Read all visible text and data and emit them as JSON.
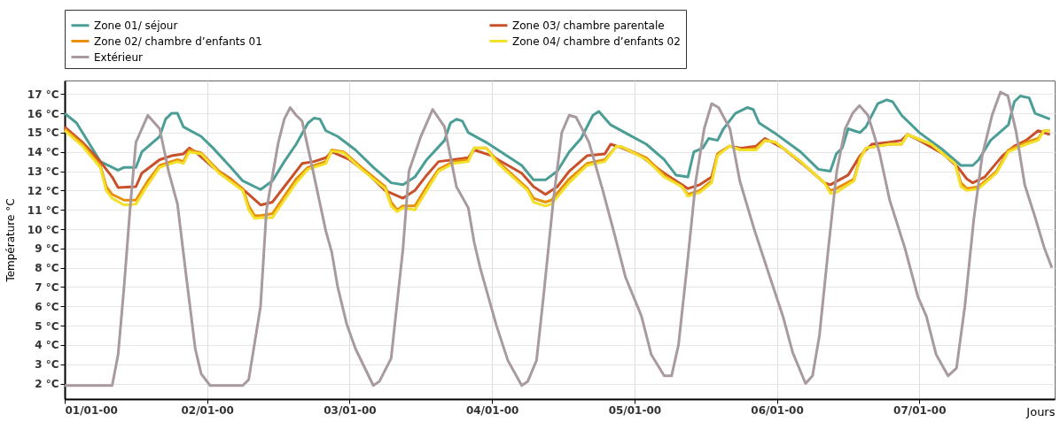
{
  "chart_data": {
    "type": "line",
    "ylabel": "Température °C",
    "xlabel": "Jours",
    "legend": "top",
    "grid": true,
    "line_style": "solid",
    "marker": "none",
    "xlim": [
      "2000-01-01T00:00",
      "2000-01-07T22:48"
    ],
    "ylim": [
      1.2,
      17.7
    ],
    "xticks": [
      {
        "value": "2000-01-01",
        "label": "01/01-00"
      },
      {
        "value": "2000-01-02",
        "label": "02/01-00"
      },
      {
        "value": "2000-01-03",
        "label": "03/01-00"
      },
      {
        "value": "2000-01-04",
        "label": "04/01-00"
      },
      {
        "value": "2000-01-05",
        "label": "05/01-00"
      },
      {
        "value": "2000-01-06",
        "label": "06/01-00"
      },
      {
        "value": "2000-01-07",
        "label": "07/01-00"
      }
    ],
    "yticks": [
      {
        "value": 2,
        "label": "2 °C"
      },
      {
        "value": 3,
        "label": "3 °C"
      },
      {
        "value": 4,
        "label": "4 °C"
      },
      {
        "value": 5,
        "label": "5 °C"
      },
      {
        "value": 6,
        "label": "6 °C"
      },
      {
        "value": 7,
        "label": "7 °C"
      },
      {
        "value": 8,
        "label": "8 °C"
      },
      {
        "value": 9,
        "label": "9 °C"
      },
      {
        "value": 10,
        "label": "10 °C"
      },
      {
        "value": 11,
        "label": "11 °C"
      },
      {
        "value": 12,
        "label": "12 °C"
      },
      {
        "value": 13,
        "label": "13 °C"
      },
      {
        "value": 14,
        "label": "14 °C"
      },
      {
        "value": 15,
        "label": "15 °C"
      },
      {
        "value": 16,
        "label": "16 °C"
      },
      {
        "value": 17,
        "label": "17 °C"
      }
    ],
    "series": [
      {
        "name": "Zone 01/ séjour",
        "color": "#4a9e96",
        "x": [
          "2000-01-01T00:00",
          "2000-01-01T02:00",
          "2000-01-01T04:00",
          "2000-01-01T06:00",
          "2000-01-01T09:00",
          "2000-01-01T10:00",
          "2000-01-01T12:00",
          "2000-01-01T13:00",
          "2000-01-01T16:00",
          "2000-01-01T17:00",
          "2000-01-01T18:00",
          "2000-01-01T19:00",
          "2000-01-01T20:00",
          "2000-01-01T23:00",
          "2000-01-02T01:00",
          "2000-01-02T04:00",
          "2000-01-02T06:00",
          "2000-01-02T09:00",
          "2000-01-02T11:00",
          "2000-01-02T13:00",
          "2000-01-02T15:00",
          "2000-01-02T17:00",
          "2000-01-02T18:00",
          "2000-01-02T19:00",
          "2000-01-02T20:00",
          "2000-01-02T22:00",
          "2000-01-03T01:00",
          "2000-01-03T04:00",
          "2000-01-03T07:00",
          "2000-01-03T09:00",
          "2000-01-03T11:00",
          "2000-01-03T13:00",
          "2000-01-03T16:00",
          "2000-01-03T17:00",
          "2000-01-03T18:00",
          "2000-01-03T19:00",
          "2000-01-03T20:00",
          "2000-01-03T23:00",
          "2000-01-04T01:00",
          "2000-01-04T05:00",
          "2000-01-04T07:00",
          "2000-01-04T09:00",
          "2000-01-04T11:00",
          "2000-01-04T13:00",
          "2000-01-04T15:00",
          "2000-01-04T17:00",
          "2000-01-04T18:00",
          "2000-01-04T20:00",
          "2000-01-04T23:00",
          "2000-01-05T02:00",
          "2000-01-05T05:00",
          "2000-01-05T07:00",
          "2000-01-05T09:00",
          "2000-01-05T10:00",
          "2000-01-05T11:30",
          "2000-01-05T12:30",
          "2000-01-05T14:00",
          "2000-01-05T15:00",
          "2000-01-05T17:00",
          "2000-01-05T19:00",
          "2000-01-05T20:00",
          "2000-01-05T21:00",
          "2000-01-06T00:00",
          "2000-01-06T04:00",
          "2000-01-06T07:00",
          "2000-01-06T09:00",
          "2000-01-06T10:00",
          "2000-01-06T11:00",
          "2000-01-06T12:00",
          "2000-01-06T13:00",
          "2000-01-06T14:00",
          "2000-01-06T15:00",
          "2000-01-06T17:00",
          "2000-01-06T18:30",
          "2000-01-06T19:30",
          "2000-01-06T21:00",
          "2000-01-07T00:00",
          "2000-01-07T04:00",
          "2000-01-07T07:00",
          "2000-01-07T09:00",
          "2000-01-07T10:00",
          "2000-01-07T12:00",
          "2000-01-07T15:00",
          "2000-01-07T16:00",
          "2000-01-07T17:00",
          "2000-01-07T18:30",
          "2000-01-07T19:30",
          "2000-01-07T22:00"
        ],
        "values": [
          16.0,
          15.5,
          14.5,
          13.5,
          13.05,
          13.2,
          13.2,
          14.0,
          14.8,
          15.7,
          16.0,
          16.0,
          15.3,
          14.8,
          14.2,
          13.2,
          12.5,
          12.05,
          12.5,
          13.5,
          14.4,
          15.5,
          15.75,
          15.7,
          15.1,
          14.8,
          14.1,
          13.2,
          12.4,
          12.3,
          12.7,
          13.6,
          14.6,
          15.5,
          15.7,
          15.6,
          15.0,
          14.5,
          14.1,
          13.3,
          12.55,
          12.55,
          13.0,
          14.0,
          14.7,
          15.9,
          16.1,
          15.4,
          14.9,
          14.4,
          13.6,
          12.8,
          12.7,
          14.0,
          14.2,
          14.7,
          14.6,
          15.2,
          16.0,
          16.3,
          16.2,
          15.5,
          14.9,
          14.0,
          13.1,
          13.0,
          13.9,
          14.2,
          15.2,
          15.1,
          15.0,
          15.3,
          16.5,
          16.7,
          16.6,
          15.9,
          15.0,
          14.1,
          13.3,
          13.3,
          13.6,
          14.6,
          15.4,
          16.6,
          16.9,
          16.8,
          16.0,
          15.7
        ]
      },
      {
        "name": "Zone 03/ chambre parentale",
        "color": "#c8502a",
        "x": [
          "2000-01-01T00:00",
          "2000-01-01T03:00",
          "2000-01-01T06:00",
          "2000-01-01T08:00",
          "2000-01-01T09:00",
          "2000-01-01T12:00",
          "2000-01-01T13:00",
          "2000-01-01T16:00",
          "2000-01-01T18:00",
          "2000-01-01T20:00",
          "2000-01-01T21:00",
          "2000-01-01T22:00",
          "2000-01-02T01:00",
          "2000-01-02T04:00",
          "2000-01-02T07:00",
          "2000-01-02T09:00",
          "2000-01-02T11:00",
          "2000-01-02T13:00",
          "2000-01-02T15:00",
          "2000-01-02T16:00",
          "2000-01-02T18:00",
          "2000-01-02T20:00",
          "2000-01-02T21:00",
          "2000-01-03T00:00",
          "2000-01-03T03:00",
          "2000-01-03T06:00",
          "2000-01-03T09:00",
          "2000-01-03T11:00",
          "2000-01-03T13:00",
          "2000-01-03T15:00",
          "2000-01-03T17:30",
          "2000-01-03T20:00",
          "2000-01-03T21:00",
          "2000-01-04T00:00",
          "2000-01-04T01:00",
          "2000-01-04T05:00",
          "2000-01-04T07:00",
          "2000-01-04T09:00",
          "2000-01-04T11:00",
          "2000-01-04T13:00",
          "2000-01-04T16:00",
          "2000-01-04T19:00",
          "2000-01-04T20:00",
          "2000-01-04T22:00",
          "2000-01-05T01:00",
          "2000-01-05T05:00",
          "2000-01-05T08:00",
          "2000-01-05T09:00",
          "2000-01-05T11:00",
          "2000-01-05T13:00",
          "2000-01-05T14:00",
          "2000-01-05T16:00",
          "2000-01-05T18:00",
          "2000-01-05T20:30",
          "2000-01-05T22:00",
          "2000-01-06T01:00",
          "2000-01-06T05:00",
          "2000-01-06T08:00",
          "2000-01-06T09:00",
          "2000-01-06T12:00",
          "2000-01-06T14:00",
          "2000-01-06T16:00",
          "2000-01-06T19:00",
          "2000-01-06T21:00",
          "2000-01-06T22:00",
          "2000-01-07T00:00",
          "2000-01-07T04:00",
          "2000-01-07T06:30",
          "2000-01-07T08:00",
          "2000-01-07T09:00",
          "2000-01-07T11:00",
          "2000-01-07T14:00",
          "2000-01-07T16:00",
          "2000-01-07T18:00",
          "2000-01-07T20:00",
          "2000-01-07T22:00"
        ],
        "values": [
          15.3,
          14.5,
          13.5,
          12.7,
          12.15,
          12.2,
          12.9,
          13.6,
          13.8,
          13.9,
          14.2,
          14.0,
          13.2,
          12.6,
          11.8,
          11.25,
          11.4,
          12.2,
          13.0,
          13.4,
          13.5,
          13.7,
          14.0,
          13.6,
          12.9,
          12.0,
          11.6,
          12.0,
          12.8,
          13.5,
          13.6,
          13.7,
          14.1,
          13.8,
          13.6,
          12.9,
          12.2,
          11.8,
          12.2,
          13.0,
          13.8,
          13.9,
          14.4,
          14.2,
          13.8,
          12.9,
          12.3,
          12.1,
          12.3,
          12.7,
          13.9,
          14.3,
          14.2,
          14.3,
          14.7,
          14.2,
          13.2,
          12.4,
          12.3,
          12.8,
          13.8,
          14.4,
          14.5,
          14.6,
          14.9,
          14.6,
          13.9,
          13.2,
          12.6,
          12.4,
          12.7,
          13.8,
          14.3,
          14.6,
          15.1,
          14.9
        ]
      },
      {
        "name": "Zone 02/ chambre d’enfants 01",
        "color": "#e8900c",
        "x": [
          "2000-01-01T00:00",
          "2000-01-01T03:00",
          "2000-01-01T06:00",
          "2000-01-01T07:00",
          "2000-01-01T08:00",
          "2000-01-01T10:00",
          "2000-01-01T12:00",
          "2000-01-01T14:00",
          "2000-01-01T16:00",
          "2000-01-01T19:00",
          "2000-01-01T20:00",
          "2000-01-01T21:00",
          "2000-01-01T23:00",
          "2000-01-02T02:00",
          "2000-01-02T06:00",
          "2000-01-02T07:00",
          "2000-01-02T08:00",
          "2000-01-02T09:00",
          "2000-01-02T11:00",
          "2000-01-02T13:00",
          "2000-01-02T15:00",
          "2000-01-02T17:00",
          "2000-01-02T20:00",
          "2000-01-02T21:00",
          "2000-01-02T23:00",
          "2000-01-03T02:00",
          "2000-01-03T06:00",
          "2000-01-03T07:00",
          "2000-01-03T08:00",
          "2000-01-03T09:00",
          "2000-01-03T11:00",
          "2000-01-03T13:00",
          "2000-01-03T15:00",
          "2000-01-03T17:30",
          "2000-01-03T20:00",
          "2000-01-03T21:00",
          "2000-01-03T23:00",
          "2000-01-04T01:00",
          "2000-01-04T06:00",
          "2000-01-04T07:00",
          "2000-01-04T09:00",
          "2000-01-04T10:00",
          "2000-01-04T13:00",
          "2000-01-04T16:00",
          "2000-01-04T19:00",
          "2000-01-04T21:00",
          "2000-01-04T22:00",
          "2000-01-05T02:00",
          "2000-01-05T05:00",
          "2000-01-05T08:00",
          "2000-01-05T09:00",
          "2000-01-05T11:00",
          "2000-01-05T13:00",
          "2000-01-05T14:00",
          "2000-01-05T16:00",
          "2000-01-05T18:00",
          "2000-01-05T20:30",
          "2000-01-05T22:00",
          "2000-01-05T23:45",
          "2000-01-06T04:00",
          "2000-01-06T08:00",
          "2000-01-06T09:00",
          "2000-01-06T10:00",
          "2000-01-06T13:00",
          "2000-01-06T14:00",
          "2000-01-06T15:00",
          "2000-01-06T19:00",
          "2000-01-06T21:00",
          "2000-01-06T22:00",
          "2000-01-07T02:00",
          "2000-01-07T06:00",
          "2000-01-07T07:00",
          "2000-01-07T08:00",
          "2000-01-07T10:00",
          "2000-01-07T13:00",
          "2000-01-07T15:00",
          "2000-01-07T18:00",
          "2000-01-07T20:00",
          "2000-01-07T21:00",
          "2000-01-07T22:00"
        ],
        "values": [
          15.2,
          14.4,
          13.3,
          12.2,
          11.8,
          11.5,
          11.5,
          12.5,
          13.3,
          13.6,
          13.5,
          14.1,
          13.95,
          13.0,
          12.1,
          11.2,
          10.7,
          10.7,
          10.8,
          11.7,
          12.6,
          13.2,
          13.5,
          14.1,
          14.0,
          13.2,
          12.2,
          11.4,
          11.0,
          11.2,
          11.2,
          12.2,
          13.1,
          13.5,
          13.6,
          14.2,
          14.2,
          13.5,
          12.1,
          11.6,
          11.4,
          11.5,
          12.6,
          13.4,
          13.6,
          14.3,
          14.25,
          13.7,
          12.8,
          12.2,
          11.8,
          12.0,
          12.5,
          13.9,
          14.3,
          14.1,
          14.2,
          14.6,
          14.5,
          13.5,
          12.4,
          12.0,
          12.1,
          12.6,
          13.7,
          14.2,
          14.4,
          14.4,
          14.9,
          14.4,
          13.4,
          12.4,
          12.1,
          12.2,
          13.0,
          14.1,
          14.5,
          14.7,
          15.1,
          15.1
        ]
      },
      {
        "name": "Zone 04/ chambre d’enfants 02",
        "color": "#f2e02a",
        "x": [
          "2000-01-01T00:00",
          "2000-01-01T03:00",
          "2000-01-01T06:00",
          "2000-01-01T07:00",
          "2000-01-01T08:00",
          "2000-01-01T10:00",
          "2000-01-01T12:00",
          "2000-01-01T14:00",
          "2000-01-01T16:00",
          "2000-01-01T19:00",
          "2000-01-01T20:00",
          "2000-01-01T21:00",
          "2000-01-01T23:00",
          "2000-01-02T02:00",
          "2000-01-02T06:00",
          "2000-01-02T07:00",
          "2000-01-02T08:00",
          "2000-01-02T09:00",
          "2000-01-02T11:00",
          "2000-01-02T13:00",
          "2000-01-02T15:00",
          "2000-01-02T17:00",
          "2000-01-02T20:00",
          "2000-01-02T21:00",
          "2000-01-02T23:00",
          "2000-01-03T02:00",
          "2000-01-03T06:00",
          "2000-01-03T07:00",
          "2000-01-03T08:00",
          "2000-01-03T09:00",
          "2000-01-03T11:00",
          "2000-01-03T13:00",
          "2000-01-03T15:00",
          "2000-01-03T17:30",
          "2000-01-03T20:00",
          "2000-01-03T21:00",
          "2000-01-03T23:00",
          "2000-01-04T01:00",
          "2000-01-04T06:00",
          "2000-01-04T07:00",
          "2000-01-04T09:00",
          "2000-01-04T10:00",
          "2000-01-04T13:00",
          "2000-01-04T16:00",
          "2000-01-04T19:00",
          "2000-01-04T21:00",
          "2000-01-04T22:00",
          "2000-01-05T02:00",
          "2000-01-05T05:00",
          "2000-01-05T08:00",
          "2000-01-05T09:00",
          "2000-01-05T11:00",
          "2000-01-05T13:00",
          "2000-01-05T14:00",
          "2000-01-05T16:00",
          "2000-01-05T18:00",
          "2000-01-05T20:30",
          "2000-01-05T22:00",
          "2000-01-05T23:45",
          "2000-01-06T04:00",
          "2000-01-06T08:00",
          "2000-01-06T09:00",
          "2000-01-06T10:00",
          "2000-01-06T13:00",
          "2000-01-06T14:00",
          "2000-01-06T15:00",
          "2000-01-06T19:00",
          "2000-01-06T21:00",
          "2000-01-06T22:00",
          "2000-01-07T02:00",
          "2000-01-07T06:00",
          "2000-01-07T07:00",
          "2000-01-07T08:00",
          "2000-01-07T10:00",
          "2000-01-07T13:00",
          "2000-01-07T15:00",
          "2000-01-07T18:00",
          "2000-01-07T20:00",
          "2000-01-07T21:00",
          "2000-01-07T22:00"
        ],
        "values": [
          15.1,
          14.3,
          13.2,
          12.0,
          11.6,
          11.25,
          11.3,
          12.3,
          13.2,
          13.5,
          13.4,
          14.0,
          13.9,
          12.9,
          12.0,
          11.0,
          10.55,
          10.6,
          10.6,
          11.5,
          12.4,
          13.1,
          13.4,
          14.05,
          13.95,
          13.1,
          12.1,
          11.2,
          10.9,
          11.1,
          11.0,
          12.0,
          13.0,
          13.4,
          13.5,
          14.2,
          14.2,
          13.4,
          12.0,
          11.4,
          11.2,
          11.3,
          12.4,
          13.3,
          13.5,
          14.3,
          14.25,
          13.6,
          12.7,
          12.2,
          11.7,
          11.9,
          12.4,
          13.8,
          14.3,
          14.1,
          14.1,
          14.6,
          14.5,
          13.5,
          12.4,
          11.85,
          11.9,
          12.5,
          13.6,
          14.2,
          14.4,
          14.4,
          14.9,
          14.4,
          13.4,
          12.2,
          12.0,
          12.1,
          12.9,
          14.0,
          14.4,
          14.6,
          15.1,
          15.1
        ]
      },
      {
        "name": "Extérieur",
        "color": "#a89a9e",
        "x": [
          "2000-01-01T00:00",
          "2000-01-01T08:00",
          "2000-01-01T09:00",
          "2000-01-01T10:00",
          "2000-01-01T11:00",
          "2000-01-01T12:00",
          "2000-01-01T14:00",
          "2000-01-01T16:00",
          "2000-01-01T17:30",
          "2000-01-01T19:00",
          "2000-01-01T20:30",
          "2000-01-01T22:00",
          "2000-01-01T23:00",
          "2000-01-02T00:30",
          "2000-01-02T06:00",
          "2000-01-02T07:00",
          "2000-01-02T09:00",
          "2000-01-02T10:00",
          "2000-01-02T12:00",
          "2000-01-02T13:00",
          "2000-01-02T14:00",
          "2000-01-02T15:00",
          "2000-01-02T16:00",
          "2000-01-02T17:30",
          "2000-01-02T20:00",
          "2000-01-02T21:00",
          "2000-01-02T22:00",
          "2000-01-02T23:30",
          "2000-01-03T01:00",
          "2000-01-03T04:00",
          "2000-01-03T05:00",
          "2000-01-03T07:00",
          "2000-01-03T09:00",
          "2000-01-03T10:00",
          "2000-01-03T12:00",
          "2000-01-03T14:00",
          "2000-01-03T16:00",
          "2000-01-03T18:00",
          "2000-01-03T20:00",
          "2000-01-03T21:00",
          "2000-01-03T22:00",
          "2000-01-04T00:45",
          "2000-01-04T02:40",
          "2000-01-04T05:00",
          "2000-01-04T06:00",
          "2000-01-04T07:30",
          "2000-01-04T08:40",
          "2000-01-04T10:20",
          "2000-01-04T11:45",
          "2000-01-04T13:00",
          "2000-01-04T14:10",
          "2000-01-04T16:20",
          "2000-01-04T18:40",
          "2000-01-04T20:40",
          "2000-01-04T22:30",
          "2000-01-05T01:10",
          "2000-01-05T02:50",
          "2000-01-05T05:00",
          "2000-01-05T06:15",
          "2000-01-05T07:25",
          "2000-01-05T08:50",
          "2000-01-05T10:20",
          "2000-01-05T11:45",
          "2000-01-05T13:00",
          "2000-01-05T14:10",
          "2000-01-05T16:05",
          "2000-01-05T17:45",
          "2000-01-05T20:10",
          "2000-01-05T22:50",
          "2000-01-06T01:00",
          "2000-01-06T02:40",
          "2000-01-06T04:50",
          "2000-01-06T06:00",
          "2000-01-06T07:10",
          "2000-01-06T08:40",
          "2000-01-06T10:05",
          "2000-01-06T11:30",
          "2000-01-06T12:45",
          "2000-01-06T13:55",
          "2000-01-06T15:20",
          "2000-01-06T17:15",
          "2000-01-06T19:00",
          "2000-01-06T21:35",
          "2000-01-06T23:45",
          "2000-01-07T01:10",
          "2000-01-07T02:50",
          "2000-01-07T04:50",
          "2000-01-07T06:15",
          "2000-01-07T07:40",
          "2000-01-07T09:10",
          "2000-01-07T10:35",
          "2000-01-07T12:15",
          "2000-01-07T13:40",
          "2000-01-07T14:55",
          "2000-01-07T16:20",
          "2000-01-07T17:45",
          "2000-01-07T19:25",
          "2000-01-07T21:05",
          "2000-01-07T22:20"
        ],
        "values": [
          1.9,
          1.9,
          3.5,
          7.0,
          11.0,
          14.5,
          15.9,
          15.2,
          13.0,
          11.3,
          7.5,
          3.8,
          2.5,
          1.9,
          1.9,
          2.2,
          6.0,
          11.0,
          14.5,
          15.7,
          16.3,
          15.9,
          15.6,
          13.5,
          9.9,
          8.8,
          7.0,
          5.1,
          3.8,
          1.9,
          2.1,
          3.3,
          9.0,
          13.0,
          14.8,
          16.2,
          15.3,
          12.2,
          11.1,
          9.3,
          8.0,
          5.0,
          3.2,
          1.9,
          2.1,
          3.2,
          6.5,
          11.5,
          15.0,
          15.9,
          15.8,
          14.5,
          12.0,
          9.7,
          7.5,
          5.5,
          3.5,
          2.4,
          2.4,
          4.0,
          8.0,
          12.5,
          15.2,
          16.5,
          16.3,
          15.2,
          12.5,
          10.0,
          7.5,
          5.5,
          3.6,
          2.0,
          2.4,
          4.5,
          9.0,
          13.0,
          15.2,
          16.0,
          16.4,
          15.9,
          14.0,
          11.5,
          9.0,
          6.5,
          5.5,
          3.5,
          2.4,
          2.8,
          6.0,
          10.5,
          13.8,
          15.9,
          17.1,
          16.9,
          15.0,
          12.3,
          10.7,
          9.0,
          8.0
        ]
      }
    ]
  }
}
